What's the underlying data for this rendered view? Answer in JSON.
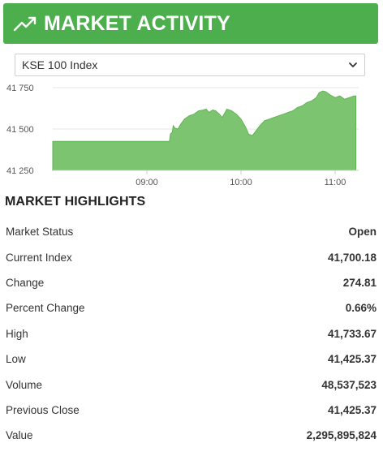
{
  "header": {
    "title": "MARKET ACTIVITY",
    "icon": "trending-up-icon",
    "color": "#4cae4c"
  },
  "index_select": {
    "selected": "KSE 100 Index"
  },
  "chart_data": {
    "type": "area",
    "color": "#7cc46f",
    "ylim": [
      41250,
      41760
    ],
    "yticks": [
      "41 750",
      "41 500",
      "41 250"
    ],
    "ytick_values": [
      41750,
      41500,
      41250
    ],
    "xticks": [
      "09:00",
      "10:00",
      "11:00"
    ],
    "xtick_values": [
      9.0,
      10.0,
      11.0
    ],
    "xlim": [
      8.0,
      11.25
    ],
    "grid": true,
    "points": [
      [
        8.0,
        41425
      ],
      [
        8.7,
        41425
      ],
      [
        9.24,
        41425
      ],
      [
        9.25,
        41470
      ],
      [
        9.27,
        41480
      ],
      [
        9.28,
        41520
      ],
      [
        9.3,
        41505
      ],
      [
        9.33,
        41500
      ],
      [
        9.36,
        41530
      ],
      [
        9.4,
        41560
      ],
      [
        9.45,
        41580
      ],
      [
        9.5,
        41590
      ],
      [
        9.55,
        41610
      ],
      [
        9.6,
        41615
      ],
      [
        9.63,
        41620
      ],
      [
        9.66,
        41600
      ],
      [
        9.7,
        41615
      ],
      [
        9.73,
        41610
      ],
      [
        9.77,
        41590
      ],
      [
        9.8,
        41570
      ],
      [
        9.85,
        41620
      ],
      [
        9.9,
        41610
      ],
      [
        9.95,
        41590
      ],
      [
        10.0,
        41560
      ],
      [
        10.05,
        41510
      ],
      [
        10.08,
        41470
      ],
      [
        10.12,
        41460
      ],
      [
        10.16,
        41490
      ],
      [
        10.2,
        41520
      ],
      [
        10.25,
        41550
      ],
      [
        10.3,
        41560
      ],
      [
        10.35,
        41570
      ],
      [
        10.4,
        41580
      ],
      [
        10.45,
        41590
      ],
      [
        10.5,
        41600
      ],
      [
        10.55,
        41610
      ],
      [
        10.6,
        41630
      ],
      [
        10.65,
        41640
      ],
      [
        10.7,
        41660
      ],
      [
        10.75,
        41670
      ],
      [
        10.8,
        41690
      ],
      [
        10.83,
        41720
      ],
      [
        10.87,
        41730
      ],
      [
        10.9,
        41725
      ],
      [
        10.95,
        41705
      ],
      [
        11.0,
        41690
      ],
      [
        11.05,
        41700
      ],
      [
        11.1,
        41680
      ],
      [
        11.15,
        41690
      ],
      [
        11.2,
        41700
      ],
      [
        11.22,
        41700
      ]
    ]
  },
  "highlights": {
    "title": "MARKET HIGHLIGHTS",
    "rows": [
      {
        "label": "Market Status",
        "value": "Open"
      },
      {
        "label": "Current Index",
        "value": "41,700.18"
      },
      {
        "label": "Change",
        "value": "274.81"
      },
      {
        "label": "Percent Change",
        "value": "0.66%"
      },
      {
        "label": "High",
        "value": "41,733.67"
      },
      {
        "label": "Low",
        "value": "41,425.37"
      },
      {
        "label": "Volume",
        "value": "48,537,523"
      },
      {
        "label": "Previous Close",
        "value": "41,425.37"
      },
      {
        "label": "Value",
        "value": "2,295,895,824"
      }
    ]
  }
}
